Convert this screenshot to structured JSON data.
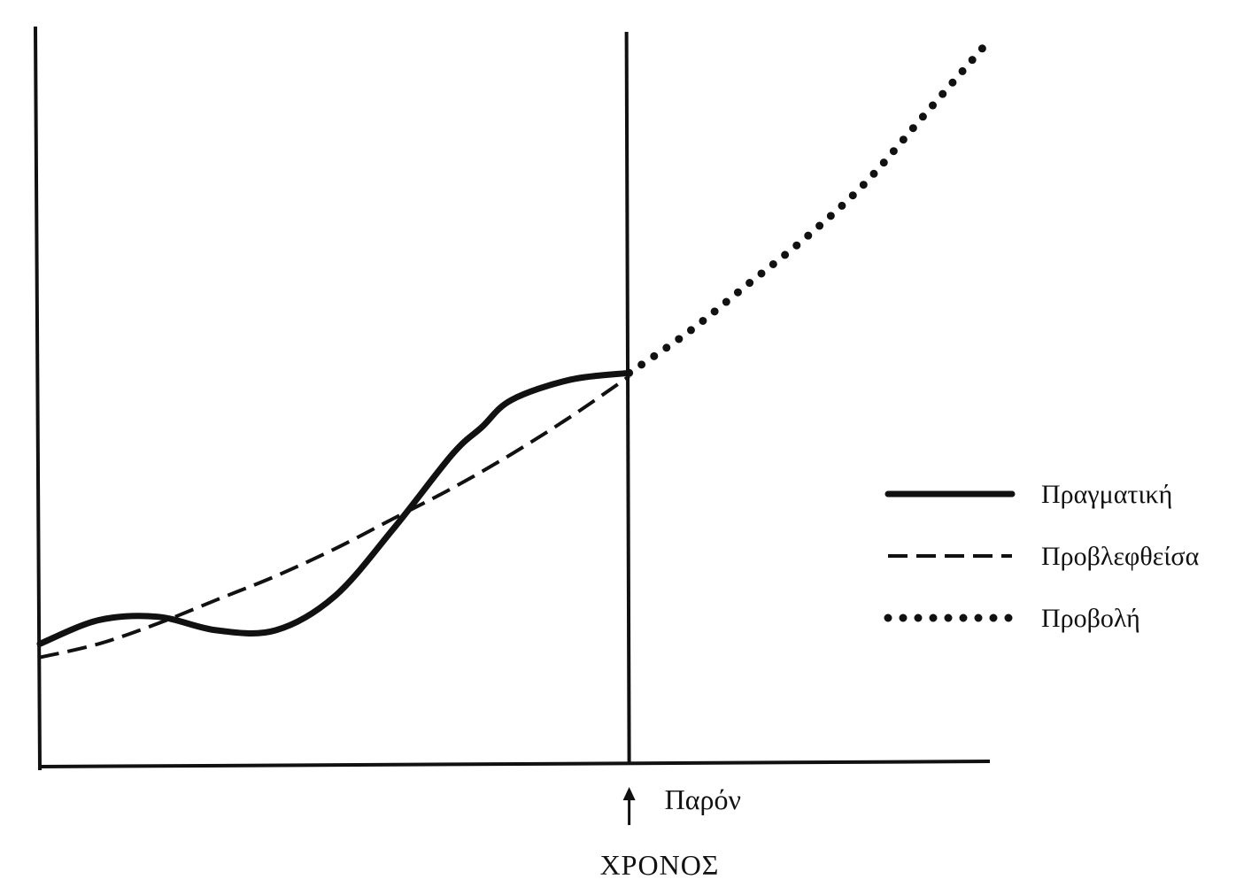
{
  "chart_data": {
    "type": "line",
    "xlabel": "ΧΡΟΝΟΣ",
    "ylabel": "",
    "present_marker": {
      "label": "Παρόν",
      "x": 10
    },
    "xlim": [
      0,
      16
    ],
    "ylim": [
      0,
      10
    ],
    "grid": false,
    "legend_position": "right",
    "series": [
      {
        "name": "Πραγματική",
        "style": "solid",
        "x": [
          0,
          1,
          2,
          3,
          4,
          5,
          6,
          7,
          7.5,
          8,
          9,
          10
        ],
        "y": [
          1.8,
          2.15,
          2.2,
          2.0,
          2.0,
          2.5,
          3.5,
          4.6,
          5.0,
          5.4,
          5.7,
          5.8
        ]
      },
      {
        "name": "Προβλεφθείσα",
        "style": "dashed",
        "x": [
          0,
          1,
          2,
          3,
          4,
          5,
          6,
          7,
          8,
          9,
          10
        ],
        "y": [
          1.6,
          1.8,
          2.1,
          2.45,
          2.8,
          3.2,
          3.65,
          4.1,
          4.6,
          5.15,
          5.75
        ]
      },
      {
        "name": "Προβολή",
        "style": "dotted",
        "x": [
          10,
          11,
          12,
          13,
          14,
          15,
          16
        ],
        "y": [
          5.8,
          6.4,
          7.1,
          7.8,
          8.6,
          9.6,
          10.6
        ]
      }
    ]
  }
}
